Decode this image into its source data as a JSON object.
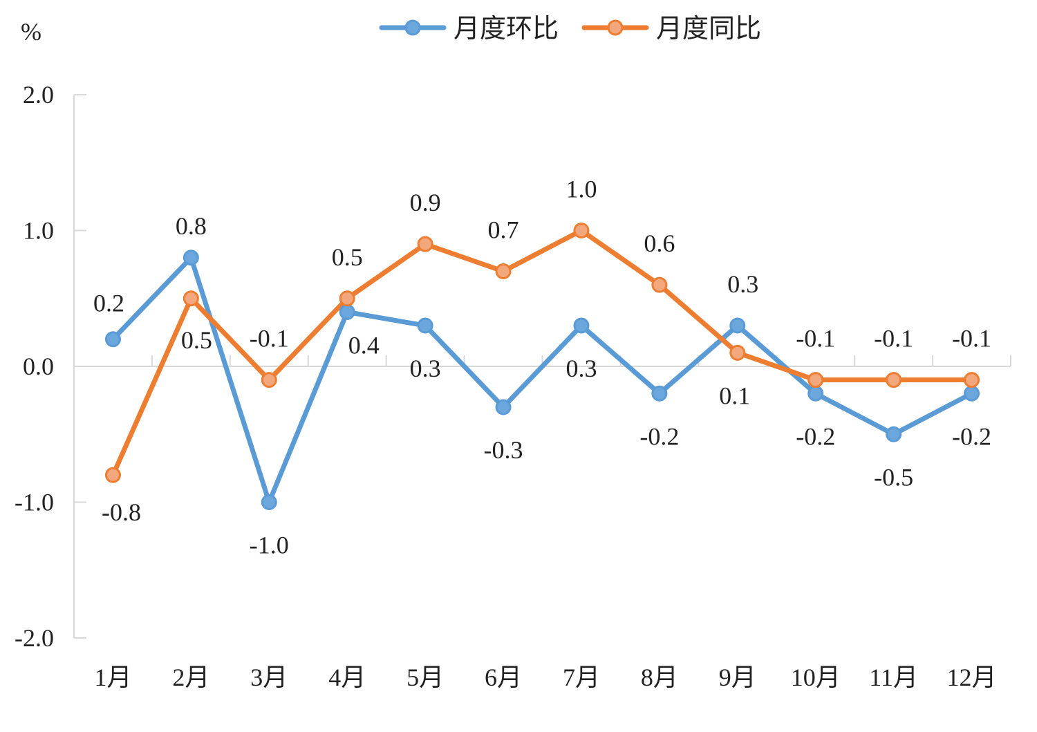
{
  "chart_data": {
    "type": "line",
    "title": "",
    "xlabel": "",
    "ylabel": "%",
    "ylim": [
      -2.0,
      2.0
    ],
    "y_ticks": [
      "2.0",
      "1.0",
      "0.0",
      "-1.0",
      "-2.0"
    ],
    "y_tick_values": [
      2.0,
      1.0,
      0.0,
      -1.0,
      -2.0
    ],
    "categories": [
      "1月",
      "2月",
      "3月",
      "4月",
      "5月",
      "6月",
      "7月",
      "8月",
      "9月",
      "10月",
      "11月",
      "12月"
    ],
    "grid": false,
    "legend": "top",
    "series": [
      {
        "name": "月度环比",
        "color": "#5B9BD5",
        "values": [
          0.2,
          0.8,
          -1.0,
          0.4,
          0.3,
          -0.3,
          0.3,
          -0.2,
          0.3,
          -0.2,
          -0.5,
          -0.2
        ],
        "labels": [
          "0.2",
          "0.8",
          "-1.0",
          "0.4",
          "0.3",
          "-0.3",
          "0.3",
          "-0.2",
          "0.3",
          "-0.2",
          "-0.5",
          "-0.2"
        ]
      },
      {
        "name": "月度同比",
        "color": "#ED7D31",
        "values": [
          -0.8,
          0.5,
          -0.1,
          0.5,
          0.9,
          0.7,
          1.0,
          0.6,
          0.1,
          -0.1,
          -0.1,
          -0.1
        ],
        "labels": [
          "-0.8",
          "0.5",
          "-0.1",
          "0.5",
          "0.9",
          "0.7",
          "1.0",
          "0.6",
          "0.1",
          "-0.1",
          "-0.1",
          "-0.1"
        ]
      }
    ]
  }
}
